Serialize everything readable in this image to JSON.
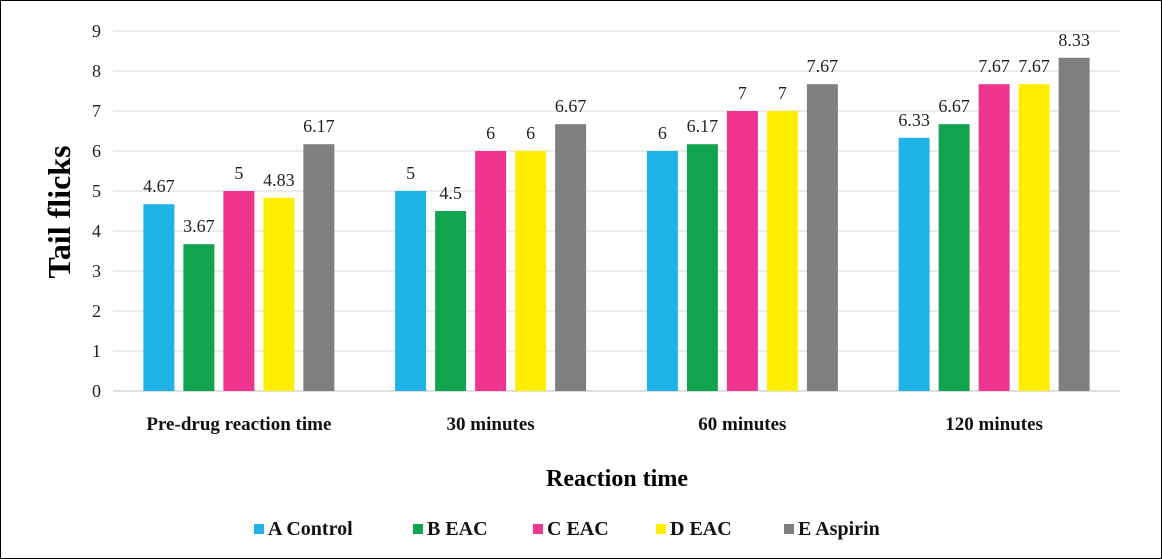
{
  "chart_data": {
    "type": "bar",
    "title": "",
    "xlabel": "Reaction time",
    "ylabel": "Tail flicks",
    "ylim": [
      0,
      9
    ],
    "yticks": [
      "0",
      "1",
      "2",
      "3",
      "4",
      "5",
      "6",
      "7",
      "8",
      "9"
    ],
    "grid": true,
    "legend_position": "bottom",
    "categories": [
      "Pre-drug reaction time",
      "30 minutes",
      "60 minutes",
      "120 minutes"
    ],
    "series": [
      {
        "name": "A Control",
        "color": "#1fb3e8",
        "values": [
          4.67,
          5,
          6,
          6.33
        ],
        "labels": [
          "4.67",
          "5",
          "6",
          "6.33"
        ]
      },
      {
        "name": "B EAC",
        "color": "#12a34f",
        "values": [
          3.67,
          4.5,
          6.17,
          6.67
        ],
        "labels": [
          "3.67",
          "4.5",
          "6.17",
          "6.67"
        ]
      },
      {
        "name": "C EAC",
        "color": "#f0358e",
        "values": [
          5,
          6,
          7,
          7.67
        ],
        "labels": [
          "5",
          "6",
          "7",
          "7.67"
        ]
      },
      {
        "name": "D EAC",
        "color": "#ffee00",
        "values": [
          4.83,
          6,
          7,
          7.67
        ],
        "labels": [
          "4.83",
          "6",
          "7",
          "7.67"
        ]
      },
      {
        "name": "E Aspirin",
        "color": "#7f7f7f",
        "values": [
          6.17,
          6.67,
          7.67,
          8.33
        ],
        "labels": [
          "6.17",
          "6.67",
          "7.67",
          "8.33"
        ]
      }
    ]
  }
}
